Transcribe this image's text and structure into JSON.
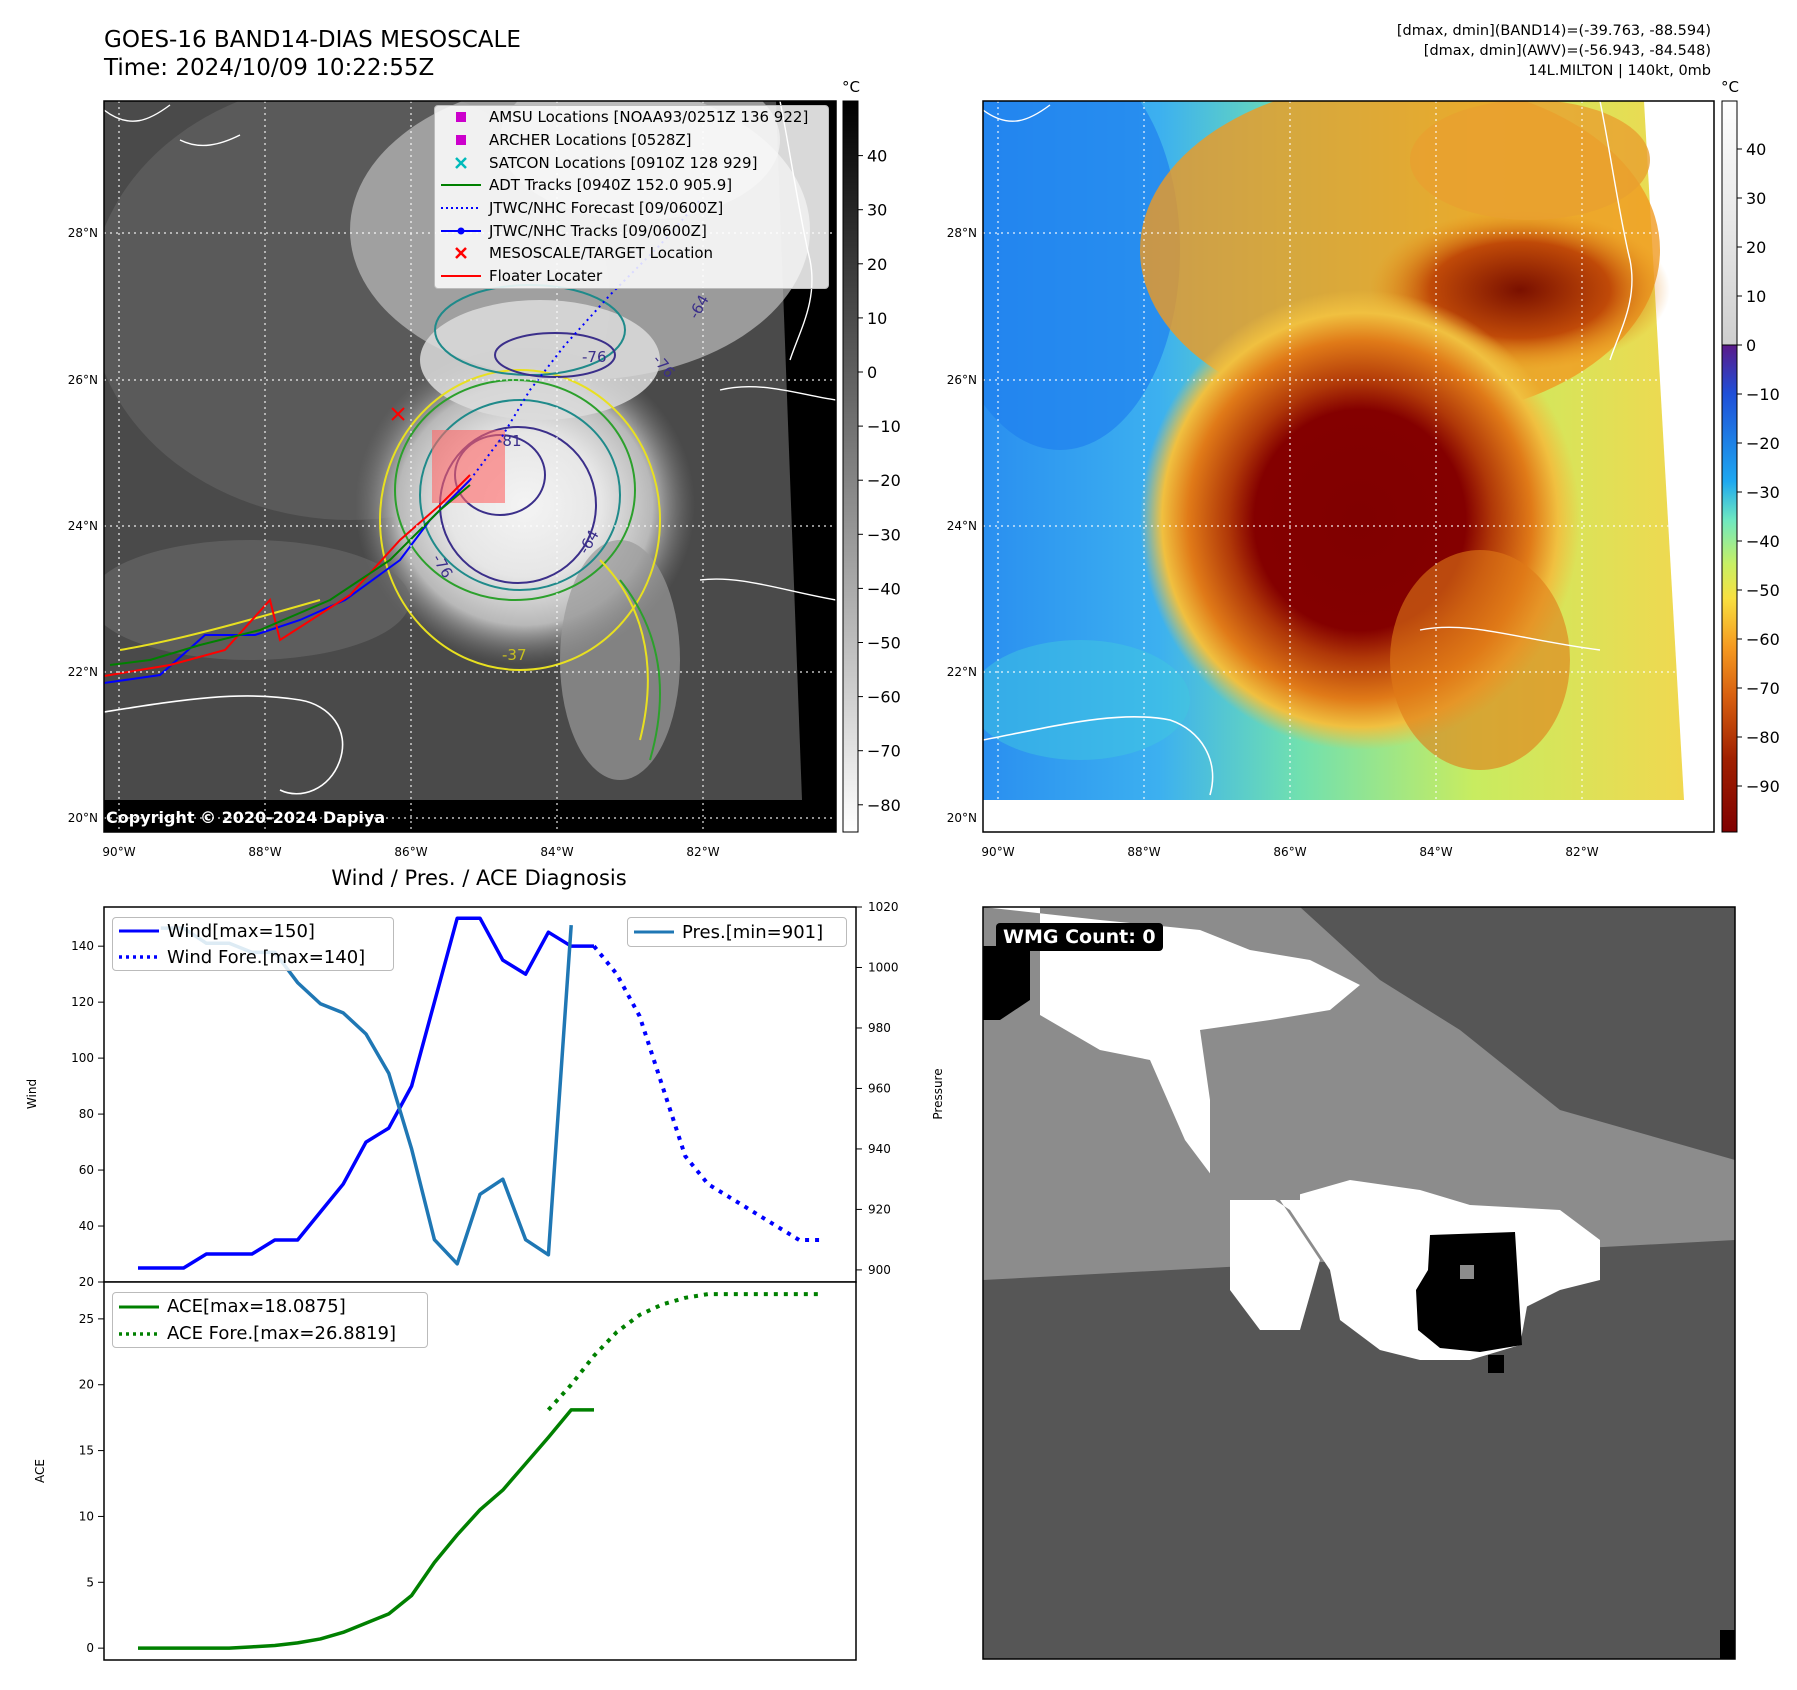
{
  "header": {
    "title_line1": "GOES-16 BAND14-DIAS MESOSCALE",
    "title_line2": "Time: 2024/10/09 10:22:55Z",
    "meta_line1": "[dmax, dmin](BAND14)=(-39.763, -88.594)",
    "meta_line2": "[dmax, dmin](AWV)=(-56.943, -84.548)",
    "meta_line3": "14L.MILTON | 140kt, 0mb"
  },
  "map": {
    "lon_labels": [
      "90°W",
      "88°W",
      "86°W",
      "84°W",
      "82°W"
    ],
    "lat_labels": [
      "20°N",
      "22°N",
      "24°N",
      "26°N",
      "28°N"
    ],
    "contour_labels": [
      "-64",
      "-76",
      "-76",
      "-81",
      "-76",
      "-64",
      "-37"
    ],
    "copyright": "Copyright © 2020-2024 Dapiya",
    "legend": [
      {
        "label": "AMSU Locations [NOAA93/0251Z 136 922]",
        "color": "#cc00cc",
        "marker": "square"
      },
      {
        "label": "ARCHER Locations [0528Z]",
        "color": "#cc00cc",
        "marker": "square"
      },
      {
        "label": "SATCON Locations [0910Z 128 929]",
        "color": "#00bbbb",
        "marker": "x"
      },
      {
        "label": "ADT Tracks [0940Z 152.0 905.9]",
        "color": "#008000",
        "marker": "line"
      },
      {
        "label": "JTWC/NHC Forecast [09/0600Z]",
        "color": "#0000ff",
        "marker": "dotted"
      },
      {
        "label": "JTWC/NHC Tracks [09/0600Z]",
        "color": "#0000ff",
        "marker": "line-dot"
      },
      {
        "label": "MESOSCALE/TARGET Location",
        "color": "#ff0000",
        "marker": "x"
      },
      {
        "label": "Floater Locater",
        "color": "#ff0000",
        "marker": "line"
      }
    ]
  },
  "colorbar_gray": {
    "unit": "°C",
    "ticks": [
      "40",
      "30",
      "20",
      "10",
      "0",
      "−10",
      "−20",
      "−30",
      "−40",
      "−50",
      "−60",
      "−70",
      "−80"
    ]
  },
  "colorbar_awv": {
    "unit": "°C",
    "ticks": [
      "40",
      "30",
      "20",
      "10",
      "0",
      "−10",
      "−20",
      "−30",
      "−40",
      "−50",
      "−60",
      "−70",
      "−80",
      "−90"
    ]
  },
  "wmg": {
    "label": "WMG Count: 0"
  },
  "chart_data": [
    {
      "type": "line",
      "title": "Wind / Pres. / ACE Diagnosis",
      "ylabel": "Wind",
      "ylabel_right": "Pressure",
      "ylim": [
        20,
        154
      ],
      "ylim_right": [
        896,
        1020
      ],
      "yticks": [
        "20",
        "40",
        "60",
        "80",
        "100",
        "120",
        "140"
      ],
      "yticks_right": [
        "900",
        "920",
        "940",
        "960",
        "980",
        "1000",
        "1020"
      ],
      "x_index_range": [
        0,
        27
      ],
      "series": [
        {
          "name": "Wind[max=150]",
          "color": "#0000ff",
          "style": "solid",
          "axis": "left",
          "x": [
            0,
            1,
            2,
            3,
            4,
            5,
            6,
            7,
            8,
            9,
            10,
            11,
            12,
            13,
            14,
            15,
            16,
            17,
            18,
            19,
            20
          ],
          "values": [
            25,
            25,
            25,
            30,
            30,
            30,
            35,
            35,
            45,
            55,
            70,
            75,
            90,
            120,
            150,
            150,
            135,
            130,
            145,
            140,
            140
          ]
        },
        {
          "name": "Wind Fore.[max=140]",
          "color": "#0000ff",
          "style": "dotted",
          "axis": "left",
          "x": [
            20,
            21,
            22,
            23,
            24,
            25,
            26,
            27,
            28,
            29,
            30
          ],
          "values": [
            140,
            130,
            115,
            90,
            65,
            55,
            50,
            45,
            40,
            35,
            35
          ]
        },
        {
          "name": "Pres.[min=901]",
          "color": "#1f77b4",
          "style": "solid",
          "axis": "right",
          "x": [
            1,
            2,
            3,
            4,
            5,
            6,
            7,
            8,
            9,
            10,
            11,
            12,
            13,
            14,
            15,
            16,
            17,
            18,
            19
          ],
          "values": [
            1013,
            1013,
            1008,
            1008,
            1005,
            1005,
            995,
            988,
            985,
            978,
            965,
            940,
            910,
            902,
            925,
            930,
            910,
            905,
            1014
          ]
        }
      ]
    },
    {
      "type": "line",
      "ylabel": "ACE",
      "ylim": [
        -0.9,
        27.8
      ],
      "yticks": [
        "0",
        "5",
        "10",
        "15",
        "20",
        "25"
      ],
      "series": [
        {
          "name": "ACE[max=18.0875]",
          "color": "#008000",
          "style": "solid",
          "x": [
            0,
            1,
            2,
            3,
            4,
            5,
            6,
            7,
            8,
            9,
            10,
            11,
            12,
            13,
            14,
            15,
            16,
            17,
            18,
            19,
            20
          ],
          "values": [
            0,
            0,
            0,
            0,
            0,
            0.1,
            0.2,
            0.4,
            0.7,
            1.2,
            1.9,
            2.6,
            4,
            6.5,
            8.6,
            10.5,
            12,
            14,
            16,
            18.09,
            18.09
          ]
        },
        {
          "name": "ACE Fore.[max=26.8819]",
          "color": "#008000",
          "style": "dotted",
          "x": [
            18,
            19,
            20,
            21,
            22,
            23,
            24,
            25,
            26,
            27,
            28,
            29,
            30
          ],
          "values": [
            18.09,
            20,
            22.2,
            24,
            25.3,
            26.1,
            26.6,
            26.88,
            26.88,
            26.88,
            26.88,
            26.88,
            26.88
          ]
        }
      ]
    }
  ]
}
